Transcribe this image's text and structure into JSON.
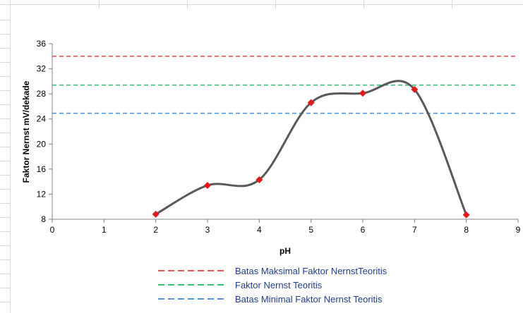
{
  "chart_data": {
    "type": "line",
    "title": "",
    "xlabel": "pH",
    "ylabel": "Faktor Nernst mV/dekade",
    "xlim": [
      0,
      9
    ],
    "ylim": [
      8,
      36
    ],
    "x_ticks": [
      "0",
      "1",
      "2",
      "3",
      "4",
      "5",
      "6",
      "7",
      "8",
      "9"
    ],
    "y_ticks": [
      "8",
      "12",
      "16",
      "20",
      "24",
      "28",
      "32",
      "36"
    ],
    "grid": false,
    "legend_position": "bottom",
    "series": [
      {
        "type": "smooth-line-with-markers",
        "color": "#595959",
        "marker_color": "#e31a1c",
        "x": [
          2,
          3,
          4,
          5,
          6,
          7,
          8
        ],
        "y": [
          8.8,
          13.4,
          14.3,
          26.6,
          28.1,
          28.7,
          8.7
        ]
      },
      {
        "name": "Batas Maksimal Faktor NernstTeoritis",
        "type": "dashed-line",
        "color": "#f0534f",
        "value": 34
      },
      {
        "name": "Faktor Nernst Teoritis",
        "type": "dashed-line",
        "color": "#3cbf7a",
        "value": 29.4
      },
      {
        "name": "Batas Minimal Faktor Nernst Teoritis",
        "type": "dashed-line",
        "color": "#4f97e0",
        "value": 24.9
      }
    ]
  }
}
